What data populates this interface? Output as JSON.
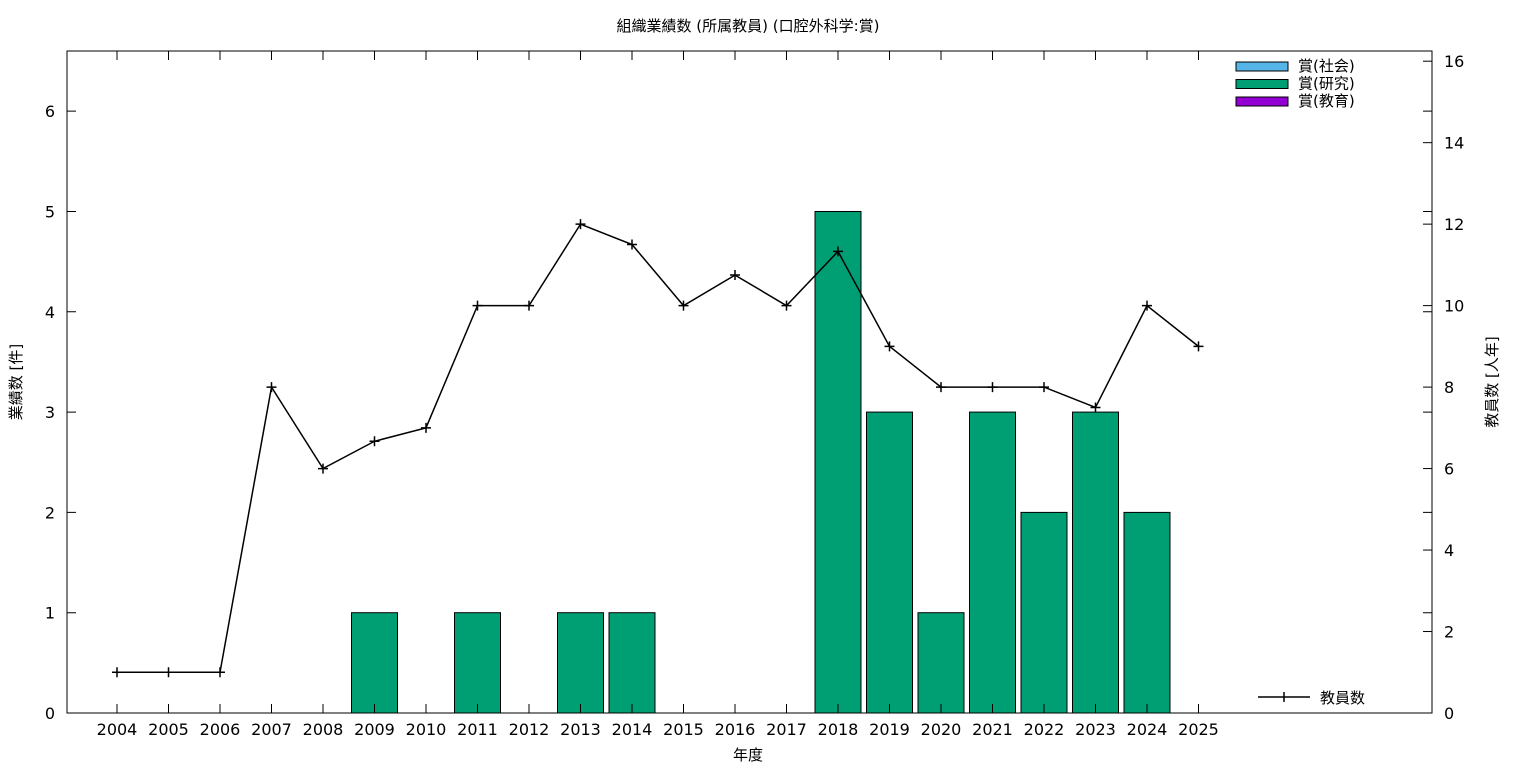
{
  "chart_data": {
    "type": "bar",
    "title": "組織業績数 (所属教員) (口腔外科学:賞)",
    "xlabel": "年度",
    "ylabel": "業績数 [件]",
    "y2label": "教員数 [人年]",
    "categories": [
      "2004",
      "2005",
      "2006",
      "2007",
      "2008",
      "2009",
      "2010",
      "2011",
      "2012",
      "2013",
      "2014",
      "2015",
      "2016",
      "2017",
      "2018",
      "2019",
      "2020",
      "2021",
      "2022",
      "2023",
      "2024",
      "2025"
    ],
    "ylim": [
      0,
      6.6
    ],
    "yticks": [
      0,
      1,
      2,
      3,
      4,
      5,
      6
    ],
    "y2lim": [
      0,
      16.25
    ],
    "y2ticks": [
      0,
      2,
      4,
      6,
      8,
      10,
      12,
      14,
      16
    ],
    "grid": false,
    "legend_position": "top-right",
    "bar_series": [
      {
        "name": "賞(社会)",
        "color": "#56b4e9",
        "values": [
          0,
          0,
          0,
          0,
          0,
          0,
          0,
          0,
          0,
          0,
          0,
          0,
          0,
          0,
          0,
          0,
          0,
          0,
          0,
          0,
          0,
          0
        ]
      },
      {
        "name": "賞(研究)",
        "color": "#009e73",
        "values": [
          0,
          0,
          0,
          0,
          0,
          1,
          0,
          1,
          0,
          1,
          1,
          0,
          0,
          0,
          5,
          3,
          1,
          3,
          2,
          3,
          2,
          0
        ]
      },
      {
        "name": "賞(教育)",
        "color": "#9400d3",
        "values": [
          0,
          0,
          0,
          0,
          0,
          0,
          0,
          0,
          0,
          0,
          0,
          0,
          0,
          0,
          0,
          0,
          0,
          0,
          0,
          0,
          0,
          0
        ]
      }
    ],
    "line_series": {
      "name": "教員数",
      "color": "#000000",
      "axis": "right",
      "legend_position": "bottom-right",
      "values": [
        1,
        1,
        1,
        8,
        6,
        6.67,
        7,
        10,
        10,
        12,
        11.5,
        10,
        10.75,
        10,
        11.33,
        9,
        8,
        8,
        8,
        7.5,
        10,
        9
      ]
    }
  }
}
